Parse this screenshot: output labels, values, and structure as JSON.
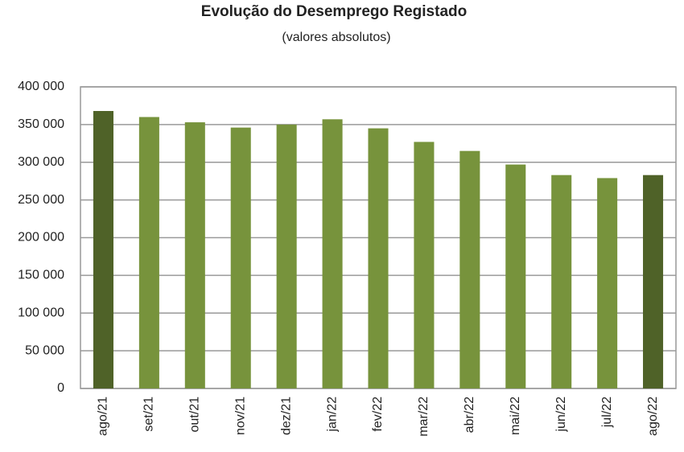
{
  "chart_data": {
    "type": "bar",
    "title": "Evolução do Desemprego Registado",
    "subtitle": "(valores absolutos)",
    "categories": [
      "ago/21",
      "set/21",
      "out/21",
      "nov/21",
      "dez/21",
      "jan/22",
      "fev/22",
      "mar/22",
      "abr/22",
      "mai/22",
      "jun/22",
      "jul/22",
      "ago/22"
    ],
    "values": [
      368000,
      360000,
      353000,
      346000,
      350000,
      357000,
      345000,
      327000,
      315000,
      297000,
      283000,
      279000,
      283000
    ],
    "colors": [
      "#4f6228",
      "#77933c",
      "#77933c",
      "#77933c",
      "#77933c",
      "#77933c",
      "#77933c",
      "#77933c",
      "#77933c",
      "#77933c",
      "#77933c",
      "#77933c",
      "#4f6228"
    ],
    "ylim": [
      0,
      400000
    ],
    "yticks": [
      0,
      {
        "value": 50000,
        "label": "50 000"
      },
      {
        "value": 100000,
        "label": "100 000"
      },
      {
        "value": 150000,
        "label": "150 000"
      },
      {
        "value": 200000,
        "label": "200 000"
      },
      {
        "value": 250000,
        "label": "250 000"
      },
      {
        "value": 300000,
        "label": "300 000"
      },
      {
        "value": 350000,
        "label": "350 000"
      },
      {
        "value": 400000,
        "label": "400 000"
      }
    ],
    "grid": true
  }
}
